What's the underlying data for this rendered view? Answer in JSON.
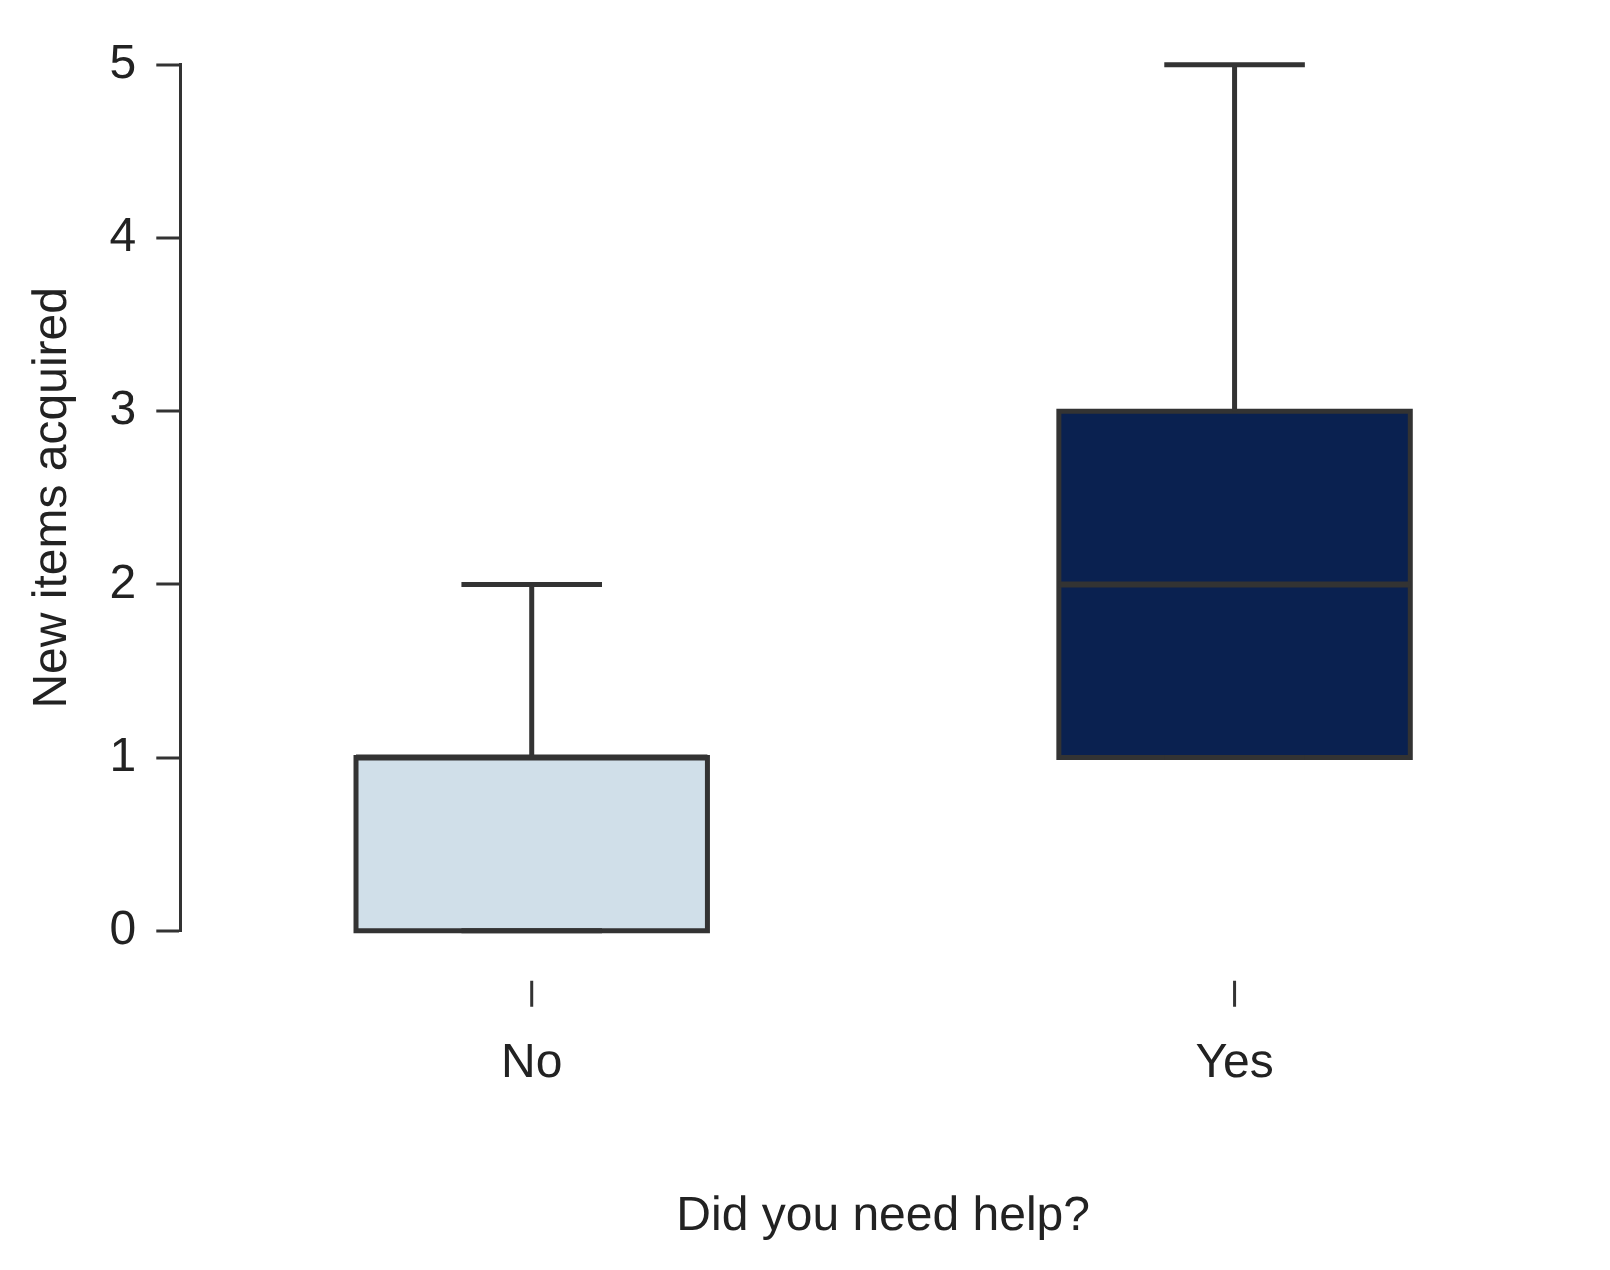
{
  "chart_data": {
    "type": "box",
    "categories": [
      "No",
      "Yes"
    ],
    "boxes": [
      {
        "low": 0,
        "q1": 0,
        "median": 1,
        "q3": 1,
        "high": 2
      },
      {
        "low": 1,
        "q1": 1,
        "median": 2,
        "q3": 3,
        "high": 5
      }
    ],
    "colors": [
      "#d0dfe9",
      "#0a2150"
    ],
    "xlabel": "Did you need help?",
    "ylabel": "New items acquired",
    "ylim": [
      0,
      5
    ],
    "yticks": [
      0,
      1,
      2,
      3,
      4,
      5
    ]
  }
}
